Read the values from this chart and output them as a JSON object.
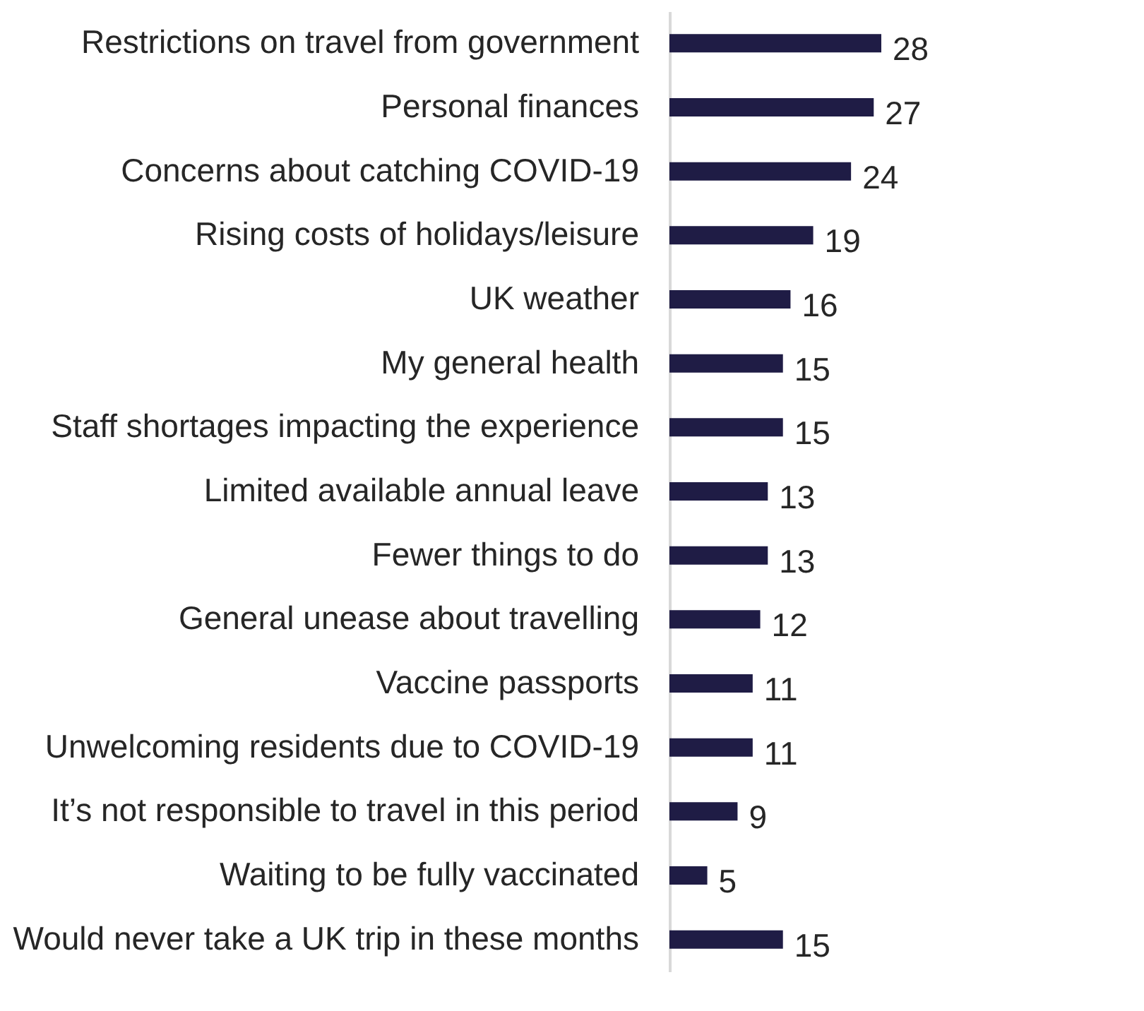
{
  "chart_data": {
    "type": "bar",
    "orientation": "horizontal",
    "categories": [
      "Restrictions on travel from government",
      "Personal finances",
      "Concerns about catching COVID-19",
      "Rising costs of holidays/leisure",
      "UK weather",
      "My general health",
      "Staff shortages impacting the experience",
      "Limited available annual leave",
      "Fewer things to do",
      "General unease about travelling",
      "Vaccine passports",
      "Unwelcoming residents due to COVID-19",
      "It’s not responsible to travel in this period",
      "Waiting to be fully vaccinated",
      "Would never take a UK trip in these months"
    ],
    "values": [
      28,
      27,
      24,
      19,
      16,
      15,
      15,
      13,
      13,
      12,
      11,
      11,
      9,
      5,
      15
    ],
    "color": "#1f1c45",
    "data_labels": true,
    "grid": false,
    "tick_labels": "y"
  }
}
